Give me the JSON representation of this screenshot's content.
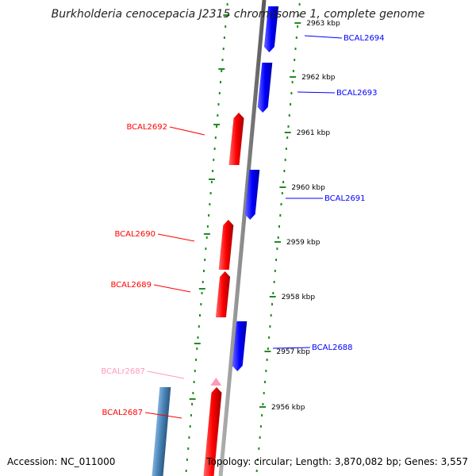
{
  "title": "Burkholderia cenocepacia J2315 chromosome 1, complete genome",
  "footer": {
    "accession_label": "Accession:",
    "accession": "NC_011000",
    "topology_label": "Topology:",
    "topology": "circular",
    "length_label": "Length:",
    "length": "3,870,082 bp",
    "genes_label": "Genes:",
    "genes": "3,557"
  },
  "colors": {
    "forward_gene": "#ff0000",
    "reverse_gene": "#0000ff",
    "rna_gene": "#ff99bb",
    "other_feature": "#4682b4",
    "backbone": "#8c8c8c",
    "scale_ticks": "#228b22",
    "tick_label": "#000000"
  },
  "scale_ticks": [
    "2963 kbp",
    "2962 kbp",
    "2961 kbp",
    "2960 kbp",
    "2959 kbp",
    "2958 kbp",
    "2957 kbp",
    "2956 kbp"
  ],
  "genes": [
    {
      "name": "BCAL2694",
      "strand": "reverse",
      "kind": "gene"
    },
    {
      "name": "BCAL2693",
      "strand": "reverse",
      "kind": "gene"
    },
    {
      "name": "BCAL2692",
      "strand": "forward",
      "kind": "gene"
    },
    {
      "name": "BCAL2691",
      "strand": "reverse",
      "kind": "gene"
    },
    {
      "name": "BCAL2690",
      "strand": "forward",
      "kind": "gene"
    },
    {
      "name": "BCAL2689",
      "strand": "forward",
      "kind": "gene"
    },
    {
      "name": "BCAL2688",
      "strand": "reverse",
      "kind": "gene"
    },
    {
      "name": "BCALr2687",
      "strand": "forward",
      "kind": "rna"
    },
    {
      "name": "BCAL2687",
      "strand": "forward",
      "kind": "gene"
    }
  ]
}
